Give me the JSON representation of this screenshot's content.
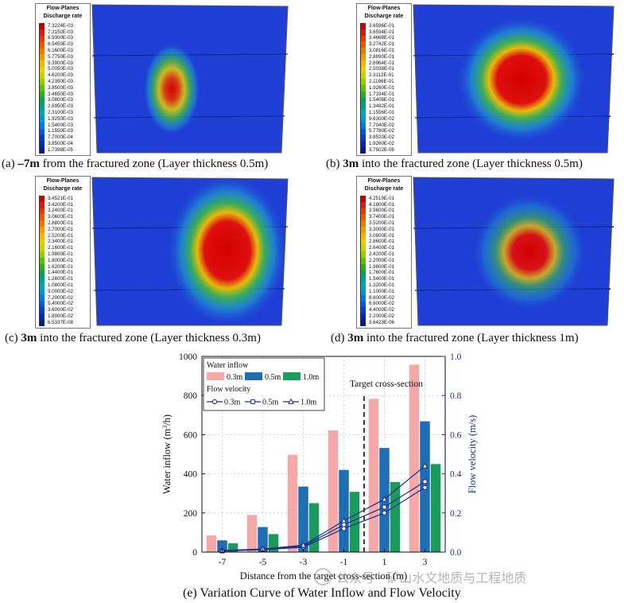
{
  "panels": [
    {
      "id": "a",
      "legend_title": "Flow-Planes",
      "legend_subtitle": "Discharge rate",
      "legend_values": [
        "7.3224E-03",
        "7.3150E-03",
        "6.9300E-03",
        "6.5450E-03",
        "6.1600E-03",
        "5.7750E-03",
        "5.3900E-03",
        "5.0050E-03",
        "4.6200E-03",
        "4.2350E-03",
        "3.8500E-03",
        "3.4650E-03",
        "3.0800E-03",
        "2.6950E-03",
        "2.3100E-03",
        "1.9250E-03",
        "1.5400E-03",
        "1.1550E-03",
        "7.7000E-04",
        "3.8500E-04",
        "1.7398E-05"
      ],
      "caption_prefix": "(a) ",
      "caption_bold": "–7m",
      "caption_rest": " from the fractured zone (Layer thickness 0.5m)"
    },
    {
      "id": "b",
      "legend_title": "Flow-Planes",
      "legend_subtitle": "Discharge rate",
      "legend_values": [
        "3.6596E-01",
        "3.6594E-01",
        "3.4668E-01",
        "3.2742E-01",
        "3.0816E-01",
        "2.8890E-01",
        "2.6964E-01",
        "2.5038E-01",
        "2.3112E-01",
        "2.1186E-01",
        "1.9260E-01",
        "1.7334E-01",
        "1.5408E-01",
        "1.3482E-01",
        "1.1556E-01",
        "9.6300E-02",
        "7.7040E-02",
        "5.7780E-02",
        "3.8520E-02",
        "1.9260E-02",
        "3.7502E-06"
      ],
      "caption_prefix": "(b) ",
      "caption_bold": "3m",
      "caption_rest": " into the fractured zone (Layer thickness 0.5m)"
    },
    {
      "id": "c",
      "legend_title": "Flow-Planes",
      "legend_subtitle": "Discharge rate",
      "legend_values": [
        "3.4521E-01",
        "3.4200E-01",
        "3.2400E-01",
        "3.0600E-01",
        "2.8800E-01",
        "2.7000E-01",
        "2.5200E-01",
        "2.3400E-01",
        "2.1600E-01",
        "1.9800E-01",
        "1.8000E-01",
        "1.6200E-01",
        "1.4400E-01",
        "1.2600E-01",
        "1.0800E-01",
        "9.0000E-02",
        "7.2000E-02",
        "5.4000E-02",
        "3.6000E-02",
        "1.8000E-02",
        "6.5337E-08"
      ],
      "caption_prefix": "(c) ",
      "caption_bold": "3m",
      "caption_rest": " into the fractured zone (Layer thickness 0.3m)"
    },
    {
      "id": "d",
      "legend_title": "Flow-Planes",
      "legend_subtitle": "Discharge rate",
      "legend_values": [
        "4.2519E-01",
        "4.1800E-01",
        "3.9600E-01",
        "3.7400E-01",
        "3.5200E-01",
        "3.3000E-01",
        "3.0800E-01",
        "2.8600E-01",
        "2.6400E-01",
        "2.4200E-01",
        "2.2000E-01",
        "1.9800E-01",
        "1.7600E-01",
        "1.5400E-01",
        "1.3200E-01",
        "1.1000E-01",
        "8.8000E-02",
        "6.6000E-02",
        "4.4000E-02",
        "2.2000E-02",
        "3.6423E-06"
      ],
      "caption_prefix": "(d) ",
      "caption_bold": "3m",
      "caption_rest": " into the fractured zone (Layer thickness 1m)"
    }
  ],
  "colorbar_colors": [
    "#c40000",
    "#d81a1a",
    "#e03c00",
    "#e85a00",
    "#f07a00",
    "#f29a00",
    "#f0b800",
    "#e6d000",
    "#c8d400",
    "#98cc00",
    "#5cbf00",
    "#2aae20",
    "#10a050",
    "#00a08a",
    "#00a6b8",
    "#0096d8",
    "#0078e0",
    "#005ad6",
    "#0040c4",
    "#0028aa",
    "#081a8c"
  ],
  "chart_caption": "(e) Variation Curve of Water Inflow and Flow Velocity",
  "watermark_text": "公众号 · 矿山水文地质与工程地质",
  "chart_data": {
    "type": "bar",
    "categories": [
      "-7",
      "-5",
      "-3",
      "-1",
      "1",
      "3"
    ],
    "xlabel": "Distance from the target cross-section (m)",
    "ylabel": "Water inflow (m³/h)",
    "ylabel_main": "Water inflow (m",
    "ylabel_sup": "3",
    "ylabel_tail": "/h)",
    "y2label": "Flow velocity (m/s)",
    "ylim": [
      0,
      1000
    ],
    "y2lim": [
      0,
      1.0
    ],
    "yticks": [
      "0",
      "200",
      "400",
      "600",
      "800",
      "1000"
    ],
    "y2ticks": [
      "0.0",
      "0.2",
      "0.4",
      "0.6",
      "0.8",
      "1.0"
    ],
    "grid": true,
    "annotation": "Target cross-section",
    "legend_group1": "Water inflow",
    "legend_group2": "Flow velocity",
    "series": [
      {
        "name": "0.3m",
        "color": "#f4a9a8",
        "values": [
          85,
          190,
          497,
          622,
          783,
          958
        ]
      },
      {
        "name": "0.5m",
        "color": "#1f6db3",
        "values": [
          60,
          128,
          335,
          420,
          532,
          668
        ]
      },
      {
        "name": "1.0m",
        "color": "#1b9a5d",
        "values": [
          45,
          92,
          250,
          308,
          358,
          450
        ]
      }
    ],
    "velocity_series": [
      {
        "name": "0.3m",
        "marker": "circle",
        "values": [
          0.005,
          0.012,
          0.025,
          0.12,
          0.2,
          0.33
        ]
      },
      {
        "name": "0.5m",
        "marker": "square",
        "values": [
          0.006,
          0.014,
          0.03,
          0.14,
          0.23,
          0.36
        ]
      },
      {
        "name": "1.0m",
        "marker": "triangle",
        "values": [
          0.008,
          0.016,
          0.035,
          0.16,
          0.27,
          0.44
        ]
      }
    ],
    "velocity_line_color": "#1b2f8c"
  }
}
